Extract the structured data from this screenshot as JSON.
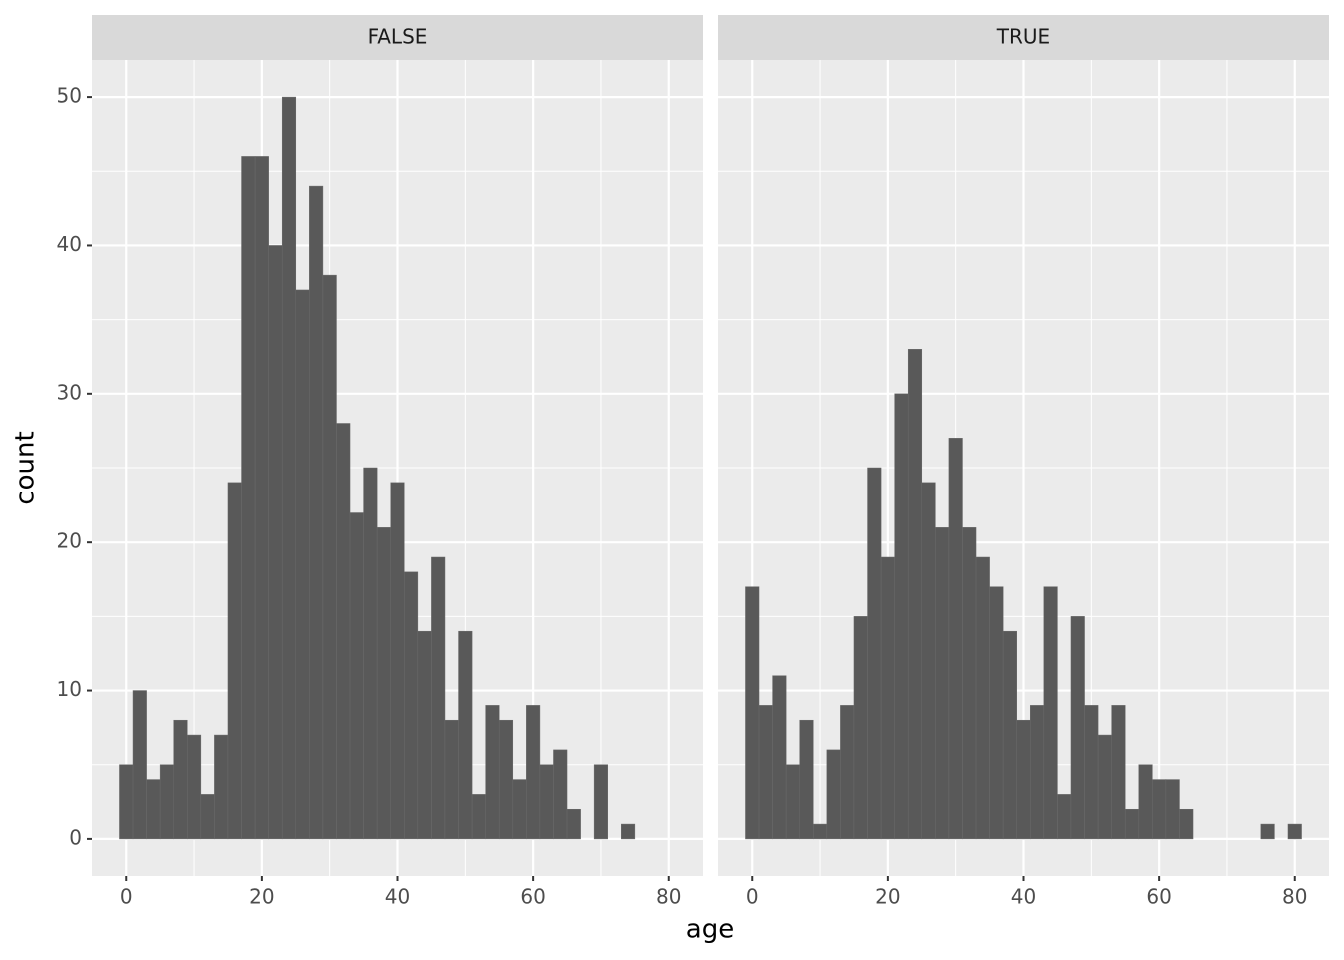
{
  "chart_data": {
    "type": "histogram",
    "xlabel": "age",
    "ylabel": "count",
    "bins": [
      -1,
      1,
      3,
      5,
      7,
      9,
      11,
      13,
      15,
      17,
      19,
      21,
      23,
      25,
      27,
      29,
      31,
      33,
      35,
      37,
      39,
      41,
      43,
      45,
      47,
      49,
      51,
      53,
      55,
      57,
      59,
      61,
      63,
      65,
      67,
      69,
      71,
      73,
      75,
      77,
      79,
      81
    ],
    "panels": [
      {
        "name": "FALSE",
        "values": [
          5,
          10,
          4,
          5,
          8,
          7,
          3,
          7,
          24,
          46,
          46,
          40,
          50,
          37,
          44,
          38,
          28,
          22,
          25,
          21,
          24,
          18,
          14,
          19,
          8,
          14,
          3,
          9,
          8,
          4,
          9,
          5,
          6,
          2,
          0,
          5,
          0,
          1,
          0,
          0,
          0
        ]
      },
      {
        "name": "TRUE",
        "values": [
          17,
          9,
          11,
          5,
          8,
          1,
          6,
          9,
          15,
          25,
          19,
          30,
          33,
          24,
          21,
          27,
          21,
          19,
          17,
          14,
          8,
          9,
          17,
          3,
          15,
          9,
          7,
          9,
          2,
          5,
          4,
          4,
          2,
          0,
          0,
          0,
          0,
          0,
          1,
          0,
          1
        ]
      }
    ],
    "color": "#595959",
    "xlim": [
      -5.05,
      85.05
    ],
    "xticks": [
      0,
      20,
      40,
      60,
      80
    ],
    "ylim": [
      -2.5,
      52.5
    ],
    "yticks": [
      0,
      10,
      20,
      30,
      40,
      50
    ],
    "grid": true
  }
}
